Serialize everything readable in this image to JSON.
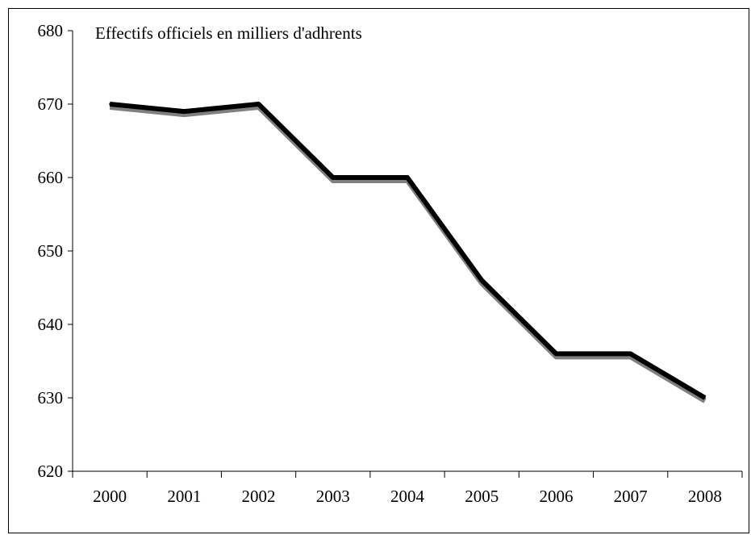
{
  "chart_data": {
    "type": "line",
    "title": "Effectifs officiels en milliers d'adhrents",
    "xlabel": "",
    "ylabel": "",
    "categories": [
      "2000",
      "2001",
      "2002",
      "2003",
      "2004",
      "2005",
      "2006",
      "2007",
      "2008"
    ],
    "series": [
      {
        "values": [
          670,
          669,
          670,
          660,
          660,
          646,
          636,
          636,
          630
        ]
      }
    ],
    "ylim": [
      620,
      680
    ],
    "yticks": [
      620,
      630,
      640,
      650,
      660,
      670,
      680
    ],
    "grid": false,
    "legend": "none",
    "line_color": "#000000",
    "shadow_color": "#808080"
  }
}
